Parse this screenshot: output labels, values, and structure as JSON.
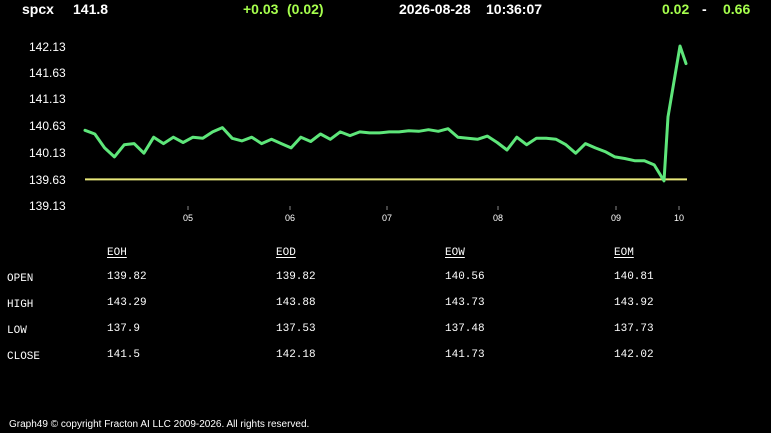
{
  "header": {
    "symbol": "spcx",
    "last": "141.8",
    "change": "+0.03",
    "change_pct": "(0.02)",
    "date": "2026-08-28",
    "time": "10:36:07",
    "range_low": "0.02",
    "range_sep": "-",
    "range_high": "0.66"
  },
  "colors": {
    "background": "#000000",
    "price_line": "#5ee67a",
    "reference_line": "#e8e87a",
    "header_accent": "#a6ff4d"
  },
  "chart_data": {
    "type": "line",
    "y_ticks": [
      "142.13",
      "141.63",
      "141.13",
      "140.63",
      "140.13",
      "139.63",
      "139.13"
    ],
    "x_ticks": [
      "05",
      "06",
      "07",
      "08",
      "09",
      "10"
    ],
    "ylim": [
      139.13,
      142.13
    ],
    "reference_value": 139.63,
    "series": [
      {
        "points": [
          [
            "04",
            140.55
          ],
          [
            "04",
            140.48
          ],
          [
            "04",
            140.22
          ],
          [
            "04",
            140.05
          ],
          [
            "04",
            140.28
          ],
          [
            "04",
            140.3
          ],
          [
            "04",
            140.12
          ],
          [
            "04",
            140.42
          ],
          [
            "04",
            140.3
          ],
          [
            "04",
            140.42
          ],
          [
            "05",
            140.32
          ],
          [
            "05",
            140.42
          ],
          [
            "05",
            140.4
          ],
          [
            "05",
            140.52
          ],
          [
            "05",
            140.6
          ],
          [
            "05",
            140.4
          ],
          [
            "05",
            140.35
          ],
          [
            "05",
            140.42
          ],
          [
            "05",
            140.3
          ],
          [
            "05",
            140.38
          ],
          [
            "06",
            140.3
          ],
          [
            "06",
            140.22
          ],
          [
            "06",
            140.42
          ],
          [
            "06",
            140.34
          ],
          [
            "06",
            140.48
          ],
          [
            "06",
            140.38
          ],
          [
            "06",
            140.52
          ],
          [
            "06",
            140.45
          ],
          [
            "06",
            140.52
          ],
          [
            "06",
            140.5
          ],
          [
            "07",
            140.5
          ],
          [
            "07",
            140.52
          ],
          [
            "07",
            140.52
          ],
          [
            "07",
            140.54
          ],
          [
            "07",
            140.53
          ],
          [
            "07",
            140.56
          ],
          [
            "07",
            140.53
          ],
          [
            "07",
            140.58
          ],
          [
            "07",
            140.42
          ],
          [
            "07",
            140.4
          ],
          [
            "08",
            140.38
          ],
          [
            "08",
            140.44
          ],
          [
            "08",
            140.32
          ],
          [
            "08",
            140.18
          ],
          [
            "08",
            140.42
          ],
          [
            "08",
            140.28
          ],
          [
            "08",
            140.4
          ],
          [
            "08",
            140.4
          ],
          [
            "08",
            140.38
          ],
          [
            "08",
            140.28
          ],
          [
            "09",
            140.12
          ],
          [
            "09",
            140.3
          ],
          [
            "09",
            140.22
          ],
          [
            "09",
            140.15
          ],
          [
            "09",
            140.05
          ],
          [
            "09",
            140.02
          ],
          [
            "09",
            139.98
          ],
          [
            "09",
            139.98
          ],
          [
            "09",
            139.9
          ],
          [
            "09",
            139.6
          ],
          [
            "10",
            140.8
          ],
          [
            "10",
            142.13
          ],
          [
            "10",
            141.8
          ]
        ]
      }
    ]
  },
  "table": {
    "columns": [
      "EOH",
      "EOD",
      "EOW",
      "EOM"
    ],
    "rows": [
      {
        "label": "OPEN",
        "values": [
          "139.82",
          "139.82",
          "140.56",
          "140.81"
        ]
      },
      {
        "label": "HIGH",
        "values": [
          "143.29",
          "143.88",
          "143.73",
          "143.92"
        ]
      },
      {
        "label": "LOW",
        "values": [
          "137.9",
          "137.53",
          "137.48",
          "137.73"
        ]
      },
      {
        "label": "CLOSE",
        "values": [
          "141.5",
          "142.18",
          "141.73",
          "142.02"
        ]
      }
    ]
  },
  "footer": "Graph49 © copyright Fracton AI LLC 2009-2026. All rights reserved."
}
